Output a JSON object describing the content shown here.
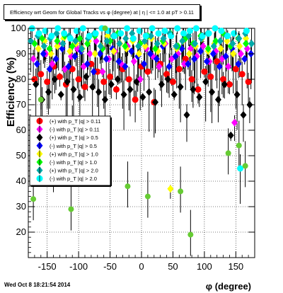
{
  "title": "Efficiency wrt Geom for Global Tracks vs φ (degree) at | η | <= 1.0 at pT > 0.11",
  "timestamp": "Wed Oct  8 18:21:54 2014",
  "chart_data": {
    "type": "scatter",
    "xlabel": "φ (degree)",
    "ylabel": "Efficiency (%)",
    "xlim": [
      -180,
      180
    ],
    "ylim": [
      10,
      100
    ],
    "xticks": [
      -150,
      -100,
      -50,
      0,
      50,
      100,
      150
    ],
    "yticks": [
      20,
      30,
      40,
      50,
      60,
      70,
      80,
      90,
      100
    ],
    "grid": true,
    "legend_position": "middle-left",
    "series": [
      {
        "name": "(+) with p_T |q| > 0.11",
        "color": "#ff0000",
        "marker": "circle",
        "x": [
          -170,
          -160,
          -150,
          -140,
          -130,
          -120,
          -110,
          -100,
          -90,
          -80,
          -70,
          -60,
          -50,
          -40,
          -30,
          -20,
          -10,
          0,
          10,
          20,
          30,
          40,
          50,
          60,
          70,
          80,
          90,
          100,
          110,
          120,
          130,
          140,
          150,
          160,
          170
        ],
        "y": [
          80,
          82,
          79,
          85,
          81,
          78,
          84,
          80,
          77,
          86,
          83,
          79,
          81,
          76,
          84,
          80,
          72,
          85,
          83,
          71,
          86,
          82,
          79,
          84,
          88,
          80,
          76,
          83,
          81,
          87,
          80,
          78,
          84,
          82,
          79
        ]
      },
      {
        "name": "(-) with p_T |q| > 0.11",
        "color": "#ff00ff",
        "marker": "diamond",
        "x": [
          -172,
          -162,
          -152,
          -142,
          -132,
          -122,
          -112,
          -102,
          -92,
          -82,
          -72,
          -62,
          -52,
          -42,
          -32,
          -22,
          -12,
          -2,
          8,
          18,
          28,
          38,
          48,
          58,
          68,
          78,
          88,
          98,
          108,
          118,
          128,
          138,
          148,
          158,
          168
        ],
        "y": [
          88,
          62,
          90,
          86,
          94,
          84,
          89,
          92,
          85,
          90,
          95,
          83,
          88,
          91,
          86,
          93,
          87,
          80,
          92,
          89,
          85,
          94,
          88,
          90,
          86,
          92,
          89,
          93,
          87,
          91,
          88,
          85,
          63,
          90,
          92
        ]
      },
      {
        "name": "(+) with p_T |q| > 0.5",
        "color": "#000000",
        "marker": "diamond",
        "x": [
          -168,
          -158,
          -148,
          -138,
          -128,
          -118,
          -108,
          -98,
          -88,
          -78,
          -68,
          -58,
          -48,
          -38,
          -28,
          -18,
          -8,
          2,
          12,
          22,
          32,
          42,
          52,
          62,
          72,
          82,
          92,
          102,
          112,
          122,
          132,
          142,
          152,
          162,
          172
        ],
        "y": [
          78,
          72,
          75,
          80,
          74,
          79,
          76,
          73,
          81,
          77,
          75,
          72,
          78,
          80,
          74,
          76,
          79,
          73,
          75,
          71,
          78,
          80,
          74,
          77,
          66,
          76,
          73,
          79,
          75,
          72,
          78,
          58,
          74,
          66,
          70
        ]
      },
      {
        "name": "(-) with p_T |q| > 0.5",
        "color": "#0000ff",
        "marker": "diamond",
        "x": [
          -166,
          -156,
          -146,
          -136,
          -126,
          -116,
          -106,
          -96,
          -86,
          -76,
          -66,
          -56,
          -46,
          -36,
          -26,
          -16,
          -6,
          4,
          14,
          24,
          34,
          44,
          54,
          64,
          74,
          84,
          94,
          104,
          114,
          124,
          134,
          144,
          154,
          164,
          174
        ],
        "y": [
          86,
          90,
          84,
          88,
          92,
          85,
          89,
          91,
          86,
          83,
          90,
          88,
          92,
          87,
          85,
          91,
          89,
          86,
          90,
          88,
          93,
          85,
          89,
          92,
          86,
          88,
          91,
          87,
          90,
          85,
          89,
          92,
          86,
          88,
          90
        ]
      },
      {
        "name": "(+) with p_T |q| > 1.0",
        "color": "#ffff00",
        "marker": "diamond",
        "x": [
          -164,
          -154,
          -144,
          -134,
          -124,
          -114,
          -104,
          -94,
          -84,
          -74,
          -64,
          -54,
          -44,
          -34,
          -24,
          -14,
          -4,
          6,
          16,
          26,
          36,
          46,
          56,
          66,
          76,
          86,
          96,
          106,
          116,
          126,
          136,
          146,
          156,
          166
        ],
        "y": [
          92,
          95,
          90,
          93,
          96,
          91,
          94,
          92,
          95,
          90,
          93,
          97,
          91,
          94,
          92,
          95,
          90,
          93,
          96,
          91,
          94,
          37,
          92,
          95,
          90,
          93,
          96,
          91,
          94,
          92,
          95,
          90,
          93,
          96
        ]
      },
      {
        "name": "(-) with p_T |q| > 1.0",
        "color": "#00ff00",
        "marker": "diamond",
        "x": [
          -170,
          -158,
          -146,
          -134,
          -122,
          -110,
          -98,
          -86,
          -74,
          -62,
          -50,
          -38,
          -26,
          -14,
          -2,
          10,
          22,
          34,
          46,
          58,
          70,
          82,
          94,
          106,
          118,
          130,
          142,
          154,
          166
        ],
        "y": [
          94,
          96,
          92,
          95,
          97,
          93,
          96,
          94,
          97,
          92,
          95,
          98,
          93,
          96,
          94,
          97,
          92,
          95,
          98,
          93,
          96,
          94,
          97,
          92,
          95,
          98,
          93,
          96,
          94
        ]
      },
      {
        "name": "(+) with p_T |q| > 2.0",
        "color": "#00aaaa",
        "marker": "diamond",
        "x": [
          -176,
          -165,
          -155,
          -145,
          -135,
          -125,
          -115,
          -105,
          -95,
          -85,
          -75,
          -65,
          -55,
          -45,
          -35,
          -25,
          -15,
          -5,
          5,
          15,
          25,
          35,
          45,
          55,
          65,
          75,
          85,
          95,
          105,
          115,
          125,
          135,
          145,
          155,
          165,
          175
        ],
        "y": [
          95,
          97,
          93,
          96,
          98,
          94,
          97,
          95,
          92,
          96,
          98,
          93,
          95,
          97,
          94,
          96,
          98,
          93,
          95,
          97,
          94,
          96,
          98,
          93,
          95,
          97,
          94,
          96,
          98,
          93,
          95,
          97,
          94,
          96,
          98,
          94
        ]
      },
      {
        "name": "(-) with p_T |q| > 2.0",
        "color": "#00ffff",
        "marker": "circle",
        "x": [
          -174,
          -163,
          -153,
          -143,
          -133,
          -123,
          -113,
          -103,
          -93,
          -83,
          -73,
          -63,
          -53,
          -43,
          -33,
          -23,
          -13,
          -3,
          7,
          17,
          27,
          37,
          47,
          57,
          67,
          77,
          87,
          97,
          107,
          117,
          127,
          137,
          147,
          157,
          167
        ],
        "y": [
          100,
          98,
          99,
          97,
          100,
          98,
          96,
          99,
          100,
          97,
          98,
          100,
          99,
          97,
          98,
          100,
          96,
          99,
          97,
          100,
          98,
          99,
          97,
          100,
          98,
          99,
          100,
          97,
          98,
          100,
          99,
          97,
          98,
          45,
          99
        ]
      }
    ],
    "outliers": {
      "color": "#66cc33",
      "x": [
        -172,
        -140,
        -112,
        -22,
        10,
        62,
        78,
        -55,
        138,
        -160,
        155,
        165,
        -110,
        -58
      ],
      "y": [
        33,
        44,
        29,
        38,
        34,
        36,
        19,
        56,
        51,
        72,
        54,
        46,
        60,
        100
      ]
    }
  }
}
